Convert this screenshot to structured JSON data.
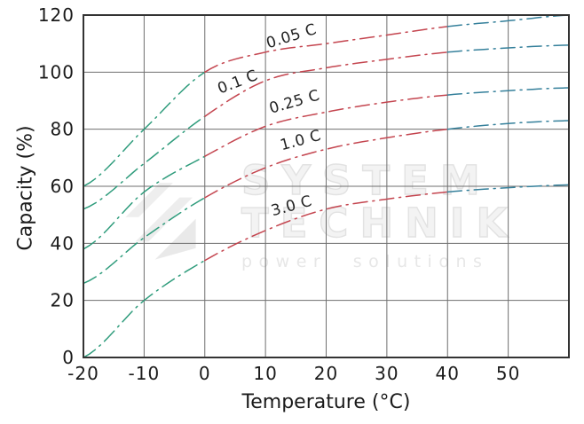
{
  "chart_data": {
    "type": "line",
    "title": "",
    "xlabel": "Temperature (°C)",
    "ylabel": "Capacity (%)",
    "xlim": [
      -20,
      60
    ],
    "ylim": [
      0,
      120
    ],
    "grid": true,
    "x_ticks": [
      -20,
      -10,
      0,
      10,
      20,
      30,
      40,
      50
    ],
    "y_ticks": [
      0,
      20,
      40,
      60,
      80,
      100,
      120
    ],
    "x": [
      -20,
      -10,
      0,
      10,
      20,
      30,
      40,
      50,
      60
    ],
    "series": [
      {
        "name": "0.05 C",
        "values": [
          60,
          80,
          100,
          107,
          110,
          113,
          116,
          118,
          120
        ],
        "label": {
          "t": 14.5,
          "v": 111,
          "rot": -17
        }
      },
      {
        "name": "0.1 C",
        "values": [
          52,
          68,
          84.5,
          97,
          101.5,
          104.5,
          107,
          108.5,
          109.5
        ],
        "label": {
          "t": 5.7,
          "v": 95,
          "rot": -21
        }
      },
      {
        "name": "0.25 C",
        "values": [
          38,
          58,
          70.5,
          81,
          86,
          89.5,
          92,
          93.5,
          94.5
        ],
        "label": {
          "t": 15,
          "v": 88,
          "rot": -16
        }
      },
      {
        "name": "1.0 C",
        "values": [
          26,
          42,
          56,
          66.5,
          73,
          77,
          80,
          82,
          83
        ],
        "label": {
          "t": 16,
          "v": 74.5,
          "rot": -15
        }
      },
      {
        "name": "3.0 C",
        "values": [
          0,
          20,
          34,
          44.5,
          52,
          55.5,
          58,
          59.5,
          60.5
        ],
        "label": {
          "t": 14.5,
          "v": 51.5,
          "rot": -15
        }
      }
    ],
    "segment_colors": [
      {
        "from": -20,
        "to": 0,
        "color": "#2F9C7C",
        "zone": "cold"
      },
      {
        "from": 0,
        "to": 40,
        "color": "#C4454F",
        "zone": "normal"
      },
      {
        "from": 40,
        "to": 60,
        "color": "#35809B",
        "zone": "hot"
      }
    ],
    "line_style": "dash-dot",
    "grid_color": "#6F6F6F",
    "border_color": "#333333",
    "text_color": "#1B1B1B",
    "legend_position": "labels-on-curves"
  },
  "watermark": {
    "line1": "SYSTEM",
    "line2": "TECHNIK",
    "line3": "power solutions",
    "color": "#ECECEC"
  }
}
